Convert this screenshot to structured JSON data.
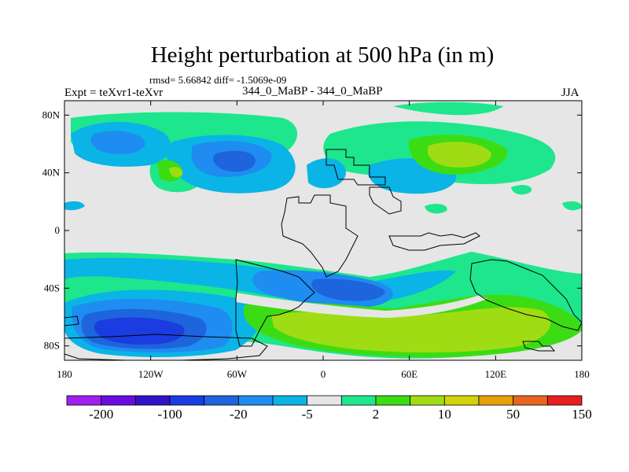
{
  "chart_data": {
    "type": "contour-map",
    "title": "Height perturbation at 500 hPa (in m)",
    "stats_line": "rmsd= 5.66842 diff= -1.5069e-09",
    "left_label": "Expt = teXvr1-teXvr",
    "center_label": "344_0_MaBP - 344_0_MaBP",
    "right_label": "JJA",
    "x_ticks": [
      "180",
      "120W",
      "60W",
      "0",
      "60E",
      "120E",
      "180"
    ],
    "y_ticks": [
      "80N",
      "40N",
      "0",
      "40S",
      "80S"
    ],
    "xlim": [
      -180,
      180
    ],
    "ylim": [
      -90,
      90
    ],
    "colorbar": {
      "colors": [
        "#a020f0",
        "#6a0ce0",
        "#3412c8",
        "#1a3ce0",
        "#1e64dc",
        "#1e8cf0",
        "#0ab4e6",
        "#e6e6e6",
        "#1ee68c",
        "#3cdc14",
        "#a0dc14",
        "#d2d20a",
        "#e6a00a",
        "#e6641e",
        "#e61e1e"
      ],
      "labels": [
        "-200",
        "-100",
        "-20",
        "-5",
        "2",
        "10",
        "50",
        "150"
      ]
    }
  }
}
